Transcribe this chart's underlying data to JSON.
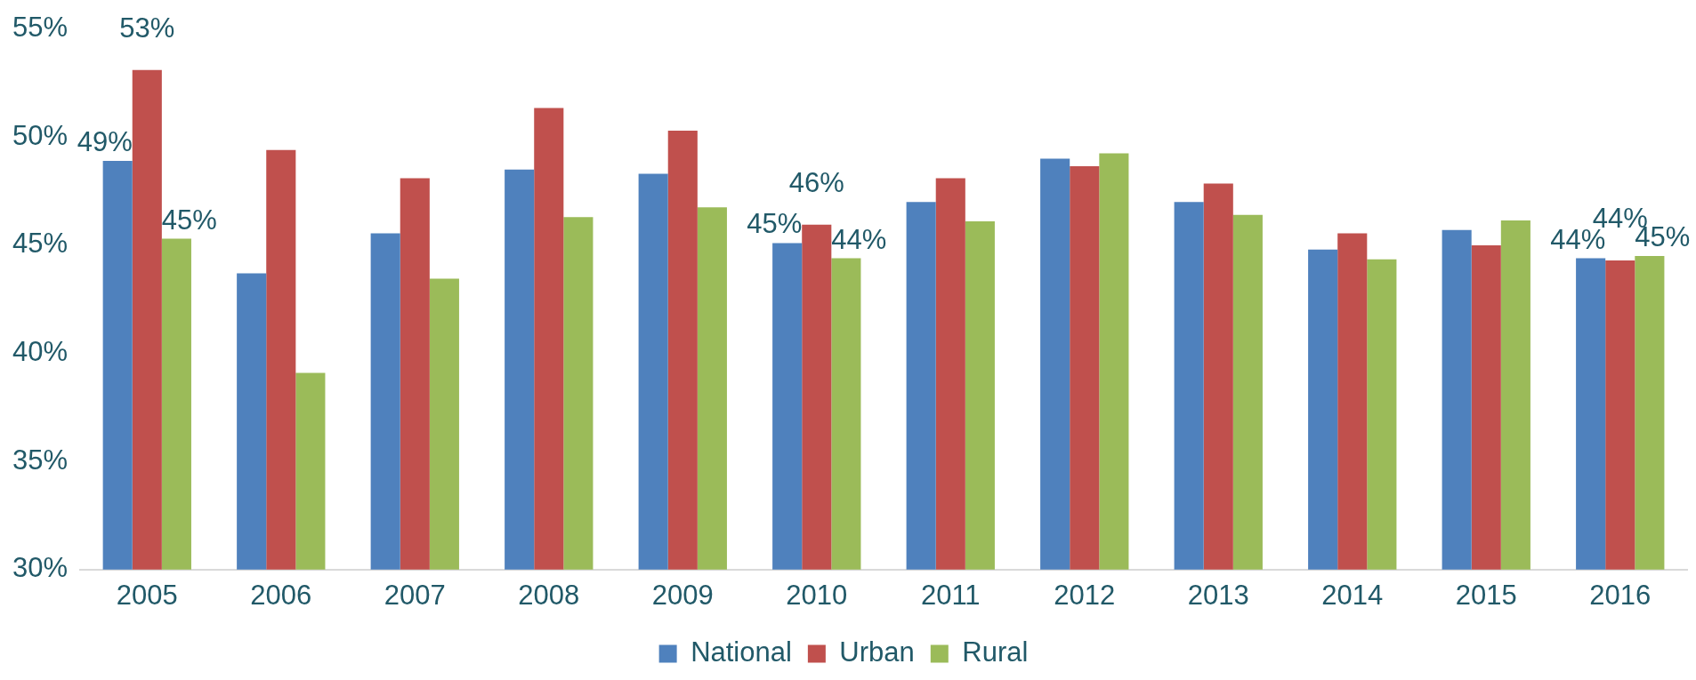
{
  "chart_data": {
    "type": "bar",
    "categories": [
      "2005",
      "2006",
      "2007",
      "2008",
      "2009",
      "2010",
      "2011",
      "2012",
      "2013",
      "2014",
      "2015",
      "2016"
    ],
    "series": [
      {
        "name": "National",
        "color": "#4f81bd",
        "values": [
          48.9,
          43.7,
          45.55,
          48.5,
          48.3,
          45.1,
          47.0,
          49.0,
          47.0,
          44.8,
          45.7,
          44.4
        ],
        "value_labels": [
          "49%",
          null,
          null,
          null,
          null,
          "45%",
          null,
          null,
          null,
          null,
          null,
          "44%"
        ]
      },
      {
        "name": "Urban",
        "color": "#c0504d",
        "values": [
          53.1,
          49.4,
          48.1,
          51.35,
          50.3,
          45.95,
          48.1,
          48.65,
          47.85,
          45.55,
          45.0,
          44.3
        ],
        "value_labels": [
          "53%",
          null,
          null,
          null,
          null,
          "46%",
          null,
          null,
          null,
          null,
          null,
          "44%"
        ]
      },
      {
        "name": "Rural",
        "color": "#9bbb59",
        "values": [
          45.3,
          39.1,
          43.45,
          46.3,
          46.75,
          44.4,
          46.1,
          49.25,
          46.4,
          44.35,
          46.15,
          44.5
        ],
        "value_labels": [
          "45%",
          null,
          null,
          null,
          null,
          "44%",
          null,
          null,
          null,
          null,
          null,
          "45%"
        ]
      }
    ],
    "ylim": [
      30,
      55
    ],
    "yticks": [
      {
        "value": 30,
        "label": "30%"
      },
      {
        "value": 35,
        "label": "35%"
      },
      {
        "value": 40,
        "label": "40%"
      },
      {
        "value": 45,
        "label": "45%"
      },
      {
        "value": 50,
        "label": "50%"
      },
      {
        "value": 55,
        "label": "55%"
      }
    ],
    "grid": false,
    "legend": "bottom"
  }
}
